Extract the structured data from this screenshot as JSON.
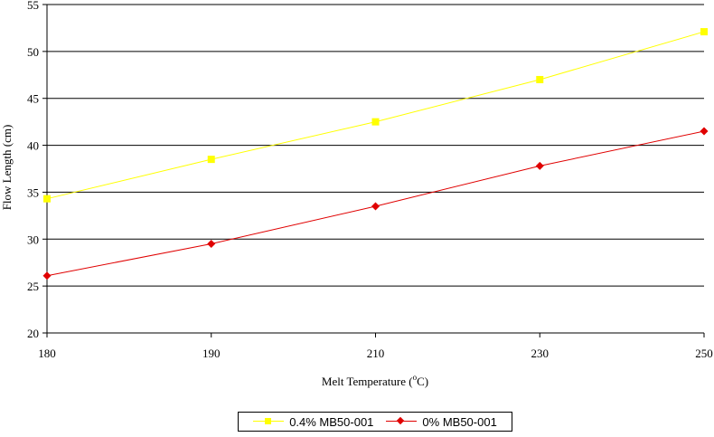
{
  "chart_data": {
    "type": "line",
    "title": "",
    "xlabel_text": "Melt Temperature (",
    "xlabel_degree": "o",
    "xlabel_unit": "C)",
    "ylabel": "Flow Length (cm)",
    "categories": [
      "180",
      "190",
      "210",
      "230",
      "250"
    ],
    "ylim": [
      20,
      55
    ],
    "yticks": [
      20,
      25,
      30,
      35,
      40,
      45,
      50,
      55
    ],
    "grid": true,
    "legend_position": "bottom",
    "series": [
      {
        "name": "0.4% MB50-001",
        "values": [
          34.3,
          38.5,
          42.5,
          47.0,
          52.1
        ],
        "color": "#ffff00",
        "marker": "square"
      },
      {
        "name": "0% MB50-001",
        "values": [
          26.1,
          29.5,
          33.5,
          37.8,
          41.5
        ],
        "color": "#e00000",
        "marker": "diamond"
      }
    ]
  }
}
